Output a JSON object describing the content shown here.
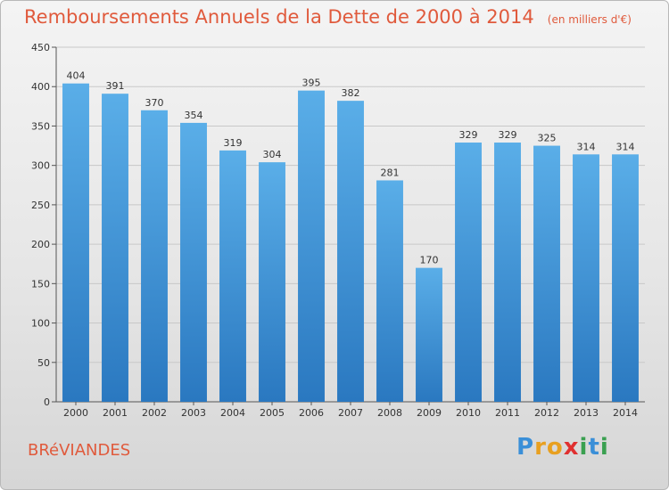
{
  "header": {
    "title": "Remboursements Annuels de la Dette de 2000 à 2014",
    "unit": "(en milliers d'€)"
  },
  "commune": "BRéVIANDES",
  "logo": {
    "letters": [
      "P",
      "r",
      "o",
      "x",
      "i",
      "t",
      "i"
    ],
    "colors": [
      "#3a8fd8",
      "#e8a020",
      "#e8a020",
      "#e03030",
      "#3aa050",
      "#3a8fd8",
      "#3aa050"
    ]
  },
  "chart_data": {
    "type": "bar",
    "title": "Remboursements Annuels de la Dette de 2000 à 2014",
    "xlabel": "",
    "ylabel": "",
    "ylim": [
      0,
      450
    ],
    "yticks": [
      0,
      50,
      100,
      150,
      200,
      250,
      300,
      350,
      400,
      450
    ],
    "categories": [
      "2000",
      "2001",
      "2002",
      "2003",
      "2004",
      "2005",
      "2006",
      "2007",
      "2008",
      "2009",
      "2010",
      "2011",
      "2012",
      "2013",
      "2014"
    ],
    "values": [
      404,
      391,
      370,
      354,
      319,
      304,
      395,
      382,
      281,
      170,
      329,
      329,
      325,
      314,
      314
    ],
    "grid": true,
    "bar_color_top": "#5aaee8",
    "bar_color_bottom": "#2a78c0"
  }
}
